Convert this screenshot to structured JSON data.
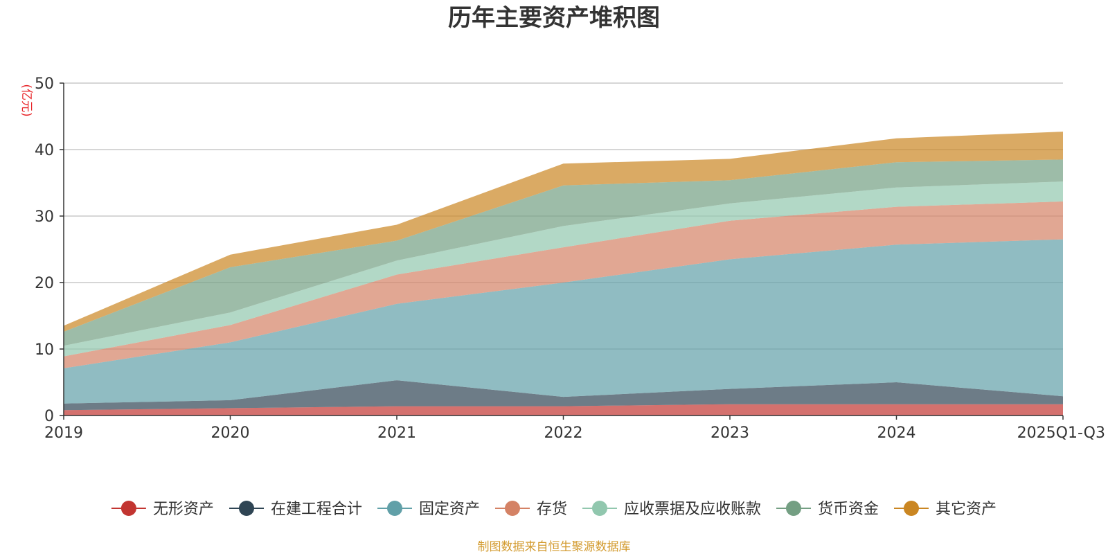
{
  "chart_data": {
    "type": "area",
    "stacked": true,
    "title": "历年主要资产堆积图",
    "ylabel": "(亿元)",
    "xlabel": "",
    "categories": [
      "2019",
      "2020",
      "2021",
      "2022",
      "2023",
      "2024",
      "2025Q1-Q3"
    ],
    "ylim": [
      0,
      50
    ],
    "yticks": [
      0,
      10,
      20,
      30,
      40,
      50
    ],
    "grid": true,
    "legend_position": "bottom",
    "series": [
      {
        "name": "无形资产",
        "color": "#c23531",
        "values": [
          0.8,
          1.1,
          1.4,
          1.4,
          1.7,
          1.7,
          1.7
        ]
      },
      {
        "name": "在建工程合计",
        "color": "#2f4554",
        "values": [
          1.0,
          1.2,
          3.9,
          1.4,
          2.3,
          3.3,
          1.2
        ]
      },
      {
        "name": "固定资产",
        "color": "#61a0a8",
        "values": [
          5.3,
          8.7,
          11.5,
          17.2,
          19.5,
          20.7,
          23.6
        ]
      },
      {
        "name": "存货",
        "color": "#d48265",
        "values": [
          1.8,
          2.6,
          4.4,
          5.3,
          5.8,
          5.7,
          5.7
        ]
      },
      {
        "name": "应收票据及应收账款",
        "color": "#91c7ae",
        "values": [
          1.6,
          1.9,
          2.1,
          3.2,
          2.6,
          2.9,
          3.0
        ]
      },
      {
        "name": "货币资金",
        "color": "#749f83",
        "values": [
          2.1,
          6.8,
          3.0,
          6.1,
          3.5,
          3.8,
          3.3
        ]
      },
      {
        "name": "其它资产",
        "color": "#ca8622",
        "values": [
          0.9,
          1.9,
          2.4,
          3.3,
          3.2,
          3.6,
          4.2
        ]
      }
    ]
  },
  "footer": {
    "source": "制图数据来自恒生聚源数据库"
  }
}
